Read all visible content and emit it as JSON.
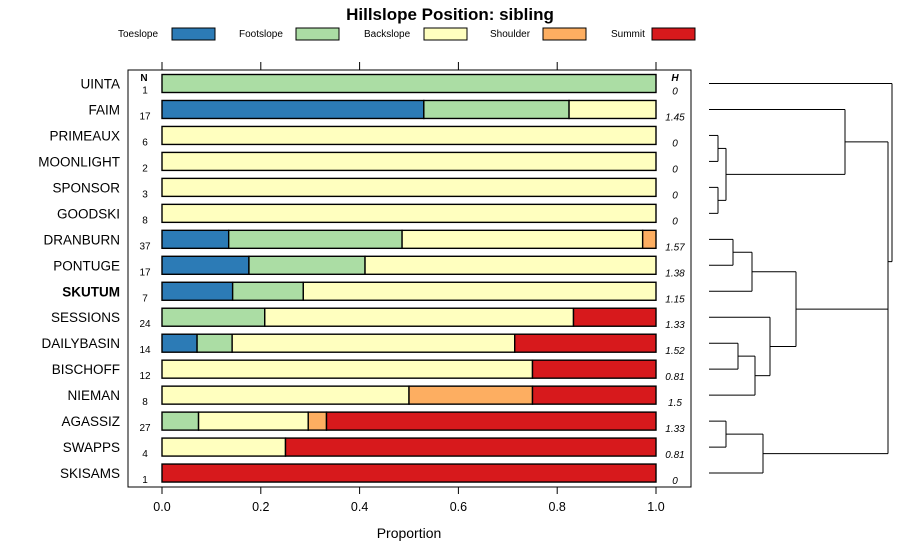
{
  "chart_data": {
    "type": "bar",
    "title": "Hillslope Position: sibling",
    "xlabel": "Proportion",
    "xlim": [
      0,
      1
    ],
    "xticks": [
      "0.0",
      "0.2",
      "0.4",
      "0.6",
      "0.8",
      "1.0"
    ],
    "n_header": "N",
    "h_header": "H",
    "highlighted_category": "SKUTUM",
    "legend": [
      {
        "name": "Toeslope",
        "color": "#2c7bb6"
      },
      {
        "name": "Footslope",
        "color": "#abdda4"
      },
      {
        "name": "Backslope",
        "color": "#ffffbf"
      },
      {
        "name": "Shoulder",
        "color": "#fdae61"
      },
      {
        "name": "Summit",
        "color": "#d7191c"
      }
    ],
    "categories": [
      "UINTA",
      "FAIM",
      "PRIMEAUX",
      "MOONLIGHT",
      "SPONSOR",
      "GOODSKI",
      "DRANBURN",
      "PONTUGE",
      "SKUTUM",
      "SESSIONS",
      "DAILYBASIN",
      "BISCHOFF",
      "NIEMAN",
      "AGASSIZ",
      "SWAPPS",
      "SKISAMS"
    ],
    "n": [
      "1",
      "17",
      "6",
      "2",
      "3",
      "8",
      "37",
      "17",
      "7",
      "24",
      "14",
      "12",
      "8",
      "27",
      "4",
      "1"
    ],
    "h": [
      "0",
      "1.45",
      "0",
      "0",
      "0",
      "0",
      "1.57",
      "1.38",
      "1.15",
      "1.33",
      "1.52",
      "0.81",
      "1.5",
      "1.33",
      "0.81",
      "0"
    ],
    "series": [
      {
        "name": "Toeslope",
        "values": [
          0,
          0.53,
          0,
          0,
          0,
          0,
          0.135,
          0.176,
          0.143,
          0,
          0.071,
          0,
          0,
          0,
          0,
          0
        ]
      },
      {
        "name": "Footslope",
        "values": [
          1,
          0.294,
          0,
          0,
          0,
          0,
          0.351,
          0.235,
          0.143,
          0.208,
          0.071,
          0,
          0,
          0.074,
          0,
          0
        ]
      },
      {
        "name": "Backslope",
        "values": [
          0,
          0.176,
          1,
          1,
          1,
          1,
          0.487,
          0.589,
          0.714,
          0.625,
          0.572,
          0.75,
          0.5,
          0.222,
          0.25,
          0
        ]
      },
      {
        "name": "Shoulder",
        "values": [
          0,
          0,
          0,
          0,
          0,
          0,
          0.027,
          0,
          0,
          0,
          0,
          0,
          0.25,
          0.037,
          0,
          0
        ]
      },
      {
        "name": "Summit",
        "values": [
          0,
          0,
          0,
          0,
          0,
          0,
          0,
          0,
          0,
          0.167,
          0.286,
          0.25,
          0.25,
          0.667,
          0.75,
          1
        ]
      }
    ]
  }
}
